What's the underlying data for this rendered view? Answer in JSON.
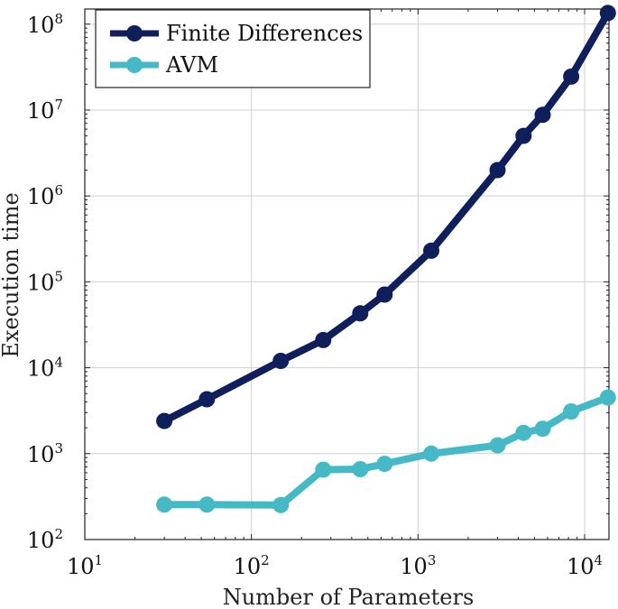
{
  "chart_data": {
    "type": "line",
    "xlabel": "Number of Parameters",
    "ylabel": "Execution time",
    "xscale": "log",
    "yscale": "log",
    "xlim": [
      10,
      14000
    ],
    "ylim": [
      100,
      150000000
    ],
    "grid": true,
    "legend_position": "top-left",
    "x_ticks": [
      {
        "base": "10",
        "exp": "1",
        "value": 10
      },
      {
        "base": "10",
        "exp": "2",
        "value": 100
      },
      {
        "base": "10",
        "exp": "3",
        "value": 1000
      },
      {
        "base": "10",
        "exp": "4",
        "value": 10000
      }
    ],
    "y_ticks": [
      {
        "base": "10",
        "exp": "2",
        "value": 100
      },
      {
        "base": "10",
        "exp": "3",
        "value": 1000
      },
      {
        "base": "10",
        "exp": "4",
        "value": 10000
      },
      {
        "base": "10",
        "exp": "5",
        "value": 100000
      },
      {
        "base": "10",
        "exp": "6",
        "value": 1000000
      },
      {
        "base": "10",
        "exp": "7",
        "value": 10000000
      },
      {
        "base": "10",
        "exp": "8",
        "value": 100000000
      }
    ],
    "series": [
      {
        "name": "Finite Differences",
        "color": "#0e1f5b",
        "x": [
          30,
          54,
          150,
          270,
          450,
          630,
          1200,
          3000,
          4300,
          5600,
          8300,
          13800
        ],
        "y": [
          2400,
          4300,
          12000,
          21000,
          43000,
          71000,
          230000,
          2000000,
          5000000,
          8800000,
          24500000,
          135000000
        ]
      },
      {
        "name": "AVM",
        "color": "#45b9c6",
        "x": [
          30,
          54,
          150,
          270,
          450,
          630,
          1200,
          3000,
          4300,
          5600,
          8300,
          13800
        ],
        "y": [
          255,
          255,
          252,
          650,
          660,
          760,
          1000,
          1250,
          1750,
          1950,
          3100,
          4500
        ]
      }
    ]
  }
}
